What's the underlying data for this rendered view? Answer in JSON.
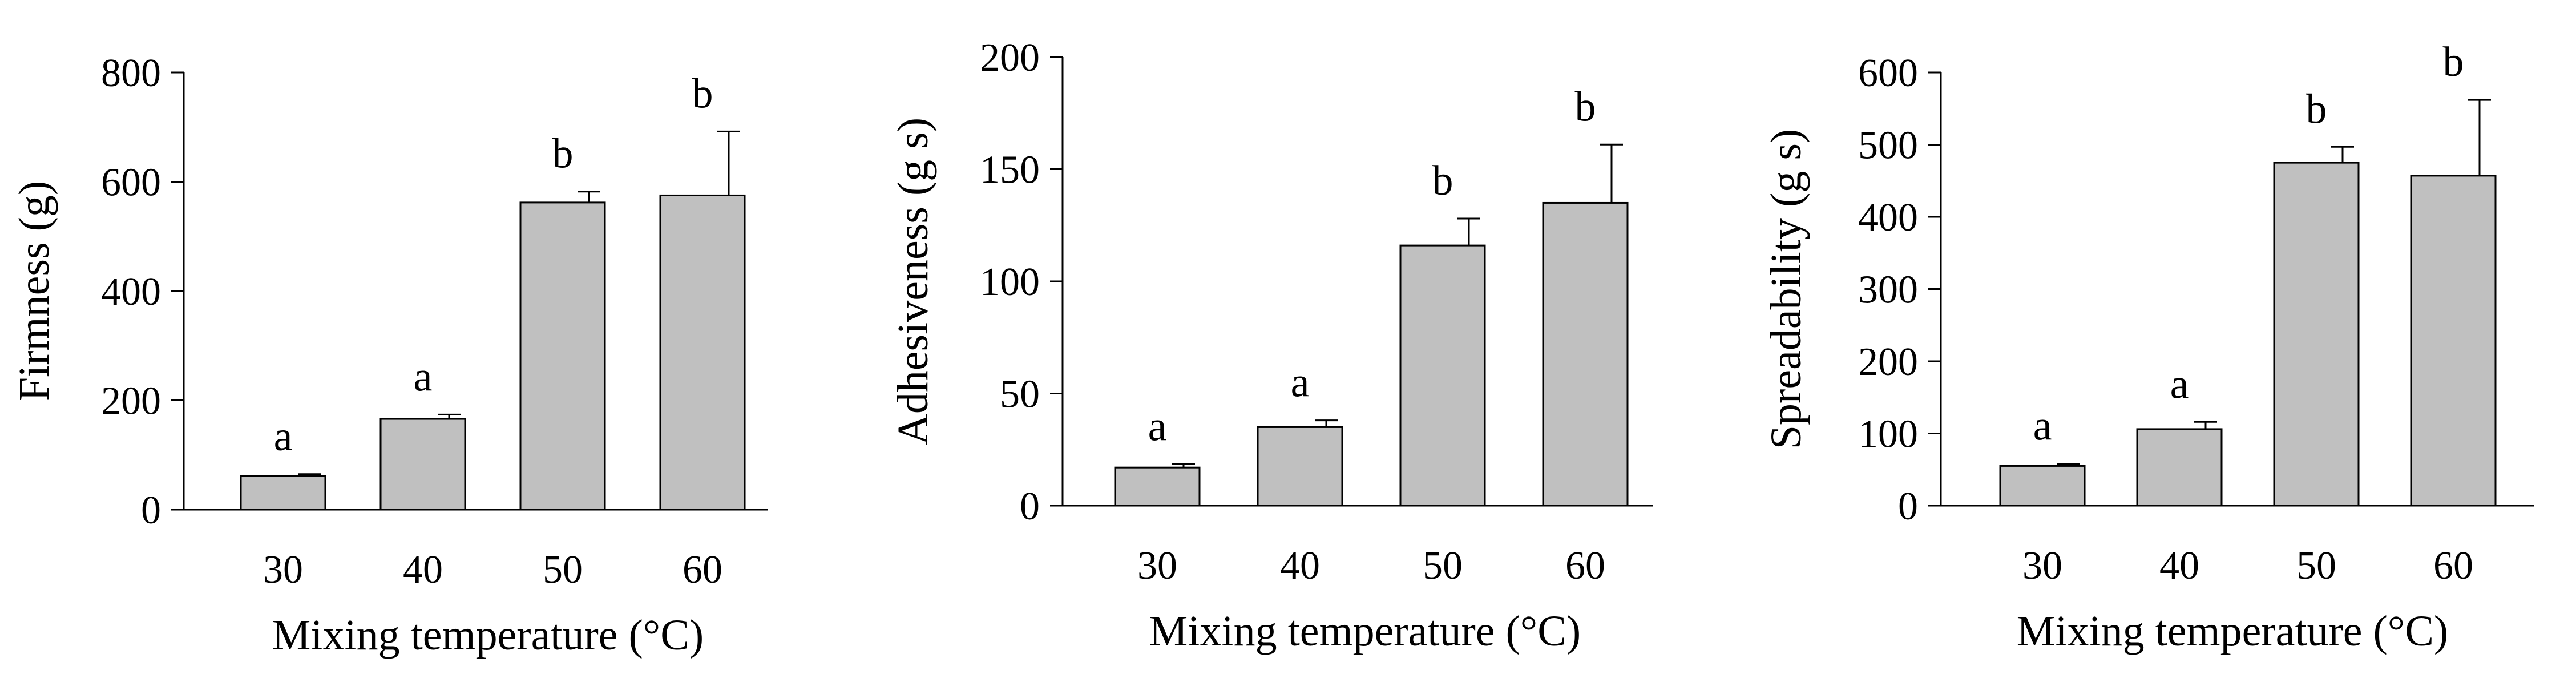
{
  "figure": {
    "background_color": "#ffffff",
    "bar_color": "#c0c0c0",
    "bar_stroke_color": "#000000"
  },
  "chart_data": [
    {
      "type": "bar",
      "title": "",
      "xlabel": "Mixing temperature (°C)",
      "ylabel": "Firmness (g)",
      "categories": [
        "30",
        "40",
        "50",
        "60"
      ],
      "values": [
        62,
        166,
        562,
        575
      ],
      "errors": [
        3,
        8,
        20,
        117
      ],
      "significance": [
        "a",
        "a",
        "b",
        "b"
      ],
      "ylim": [
        0,
        800
      ],
      "yticks": [
        0,
        200,
        400,
        600,
        800
      ],
      "grid": false,
      "legend": "none"
    },
    {
      "type": "bar",
      "title": "",
      "xlabel": "Mixing temperature (°C)",
      "ylabel": "Adhesiveness (g s)",
      "categories": [
        "30",
        "40",
        "50",
        "60"
      ],
      "values": [
        17,
        35,
        116,
        135
      ],
      "errors": [
        1.5,
        3,
        12,
        26
      ],
      "significance": [
        "a",
        "a",
        "b",
        "b"
      ],
      "ylim": [
        0,
        200
      ],
      "yticks": [
        0,
        50,
        100,
        150,
        200
      ],
      "grid": false,
      "legend": "none"
    },
    {
      "type": "bar",
      "title": "",
      "xlabel": "Mixing temperature (°C)",
      "ylabel": "Spreadability (g s)",
      "categories": [
        "30",
        "40",
        "50",
        "60"
      ],
      "values": [
        55,
        106,
        475,
        457
      ],
      "errors": [
        3,
        10,
        22,
        105
      ],
      "significance": [
        "a",
        "a",
        "b",
        "b"
      ],
      "ylim": [
        0,
        600
      ],
      "yticks": [
        0,
        100,
        200,
        300,
        400,
        500,
        600
      ],
      "grid": false,
      "legend": "none"
    }
  ]
}
